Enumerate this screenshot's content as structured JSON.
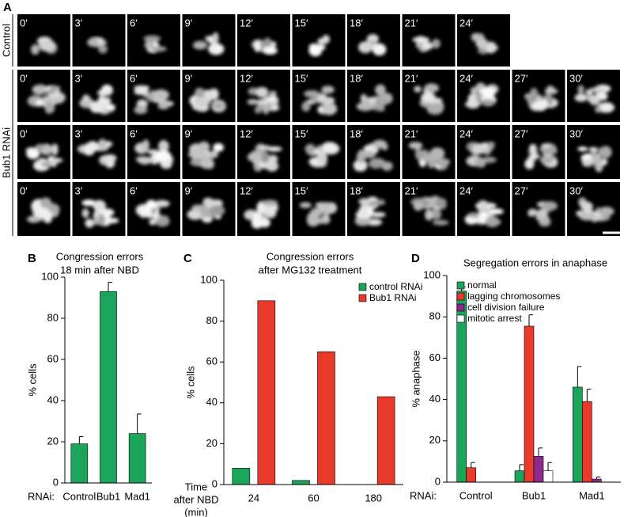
{
  "panel_a": {
    "letter": "A",
    "row_labels": [
      "Control",
      "Bub1 RNAi"
    ],
    "rows": [
      [
        "0′",
        "3′",
        "6′",
        "9′",
        "12′",
        "15′",
        "18′",
        "21′",
        "24′"
      ],
      [
        "0′",
        "3′",
        "6′",
        "9′",
        "12′",
        "15′",
        "18′",
        "21′",
        "24′",
        "27′",
        "30′"
      ],
      [
        "0′",
        "3′",
        "6′",
        "9′",
        "12′",
        "15′",
        "18′",
        "21′",
        "24′",
        "27′",
        "30′"
      ],
      [
        "0′",
        "3′",
        "6′",
        "9′",
        "12′",
        "15′",
        "18′",
        "21′",
        "24′",
        "27′",
        "30′"
      ]
    ]
  },
  "chart_data": [
    {
      "type": "bar",
      "letter": "B",
      "title": [
        "Congression errors",
        "18 min after NBD"
      ],
      "ylabel": "% cells",
      "xlabel": "RNAi:",
      "categories": [
        "Control",
        "Bub1",
        "Mad1"
      ],
      "values": [
        19,
        93,
        24
      ],
      "errors": [
        3.5,
        4.5,
        9.5
      ],
      "color": "#1aa55a",
      "ylim": [
        0,
        100
      ],
      "yticks": [
        0,
        20,
        40,
        60,
        80,
        100
      ]
    },
    {
      "type": "bar",
      "letter": "C",
      "title": [
        "Congression errors",
        "after MG132 treatment"
      ],
      "ylabel": "% cells",
      "xlabel": [
        "Time",
        "after NBD",
        "(min)"
      ],
      "categories": [
        "24",
        "60",
        "180"
      ],
      "series": [
        {
          "name": "control RNAi",
          "color": "#1aa55a",
          "values": [
            8,
            2,
            null
          ]
        },
        {
          "name": "Bub1 RNAi",
          "color": "#e8392b",
          "values": [
            90,
            65,
            43
          ]
        }
      ],
      "ylim": [
        0,
        100
      ],
      "yticks": [
        0,
        20,
        40,
        60,
        80,
        100
      ]
    },
    {
      "type": "bar",
      "letter": "D",
      "title": [
        "Segregation errors in anaphase"
      ],
      "ylabel": "% anaphase",
      "xlabel": "RNAi:",
      "categories": [
        "Control",
        "Bub1",
        "Mad1"
      ],
      "series": [
        {
          "name": "normal",
          "color": "#1aa55a",
          "values": [
            92.5,
            5.5,
            46
          ],
          "errors": [
            2,
            3,
            10
          ]
        },
        {
          "name": "lagging chromosomes",
          "color": "#e8392b",
          "values": [
            7,
            75.5,
            39
          ],
          "errors": [
            2.5,
            5.5,
            6
          ]
        },
        {
          "name": "cell division failure",
          "color": "#8e2a8c",
          "values": [
            0,
            12.5,
            1.5
          ],
          "errors": [
            0,
            4,
            1
          ]
        },
        {
          "name": "mitotic arrest",
          "color": "#ffffff",
          "values": [
            0,
            5.5,
            0
          ],
          "errors": [
            0,
            4,
            0
          ]
        }
      ],
      "ylim": [
        0,
        100
      ],
      "yticks": [
        0,
        20,
        40,
        60,
        80,
        100
      ]
    }
  ]
}
